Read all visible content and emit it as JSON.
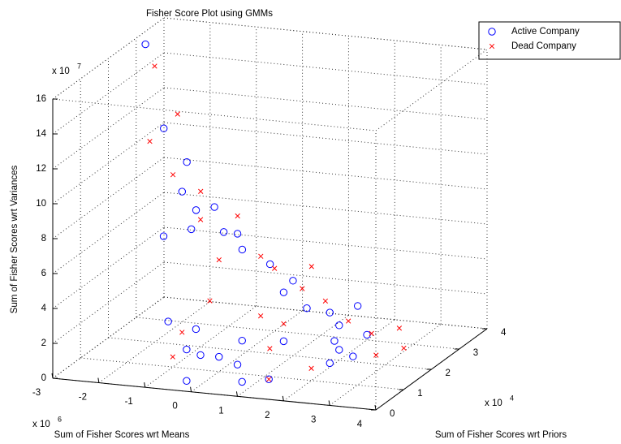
{
  "chart_data": {
    "type": "scatter3d",
    "title": "Fisher Score Plot using GMMs",
    "xlabel": "Sum of Fisher Scores wrt Means",
    "ylabel": "Sum of Fisher Scores wrt Priors",
    "zlabel": "Sum of Fisher Scores wrt Variances",
    "x_multiplier": {
      "base": "x 10",
      "exp": "6"
    },
    "y_multiplier": {
      "base": "x 10",
      "exp": "4"
    },
    "z_multiplier": {
      "base": "x 10",
      "exp": "7"
    },
    "xlim": [
      -3,
      4
    ],
    "xticks": [
      -3,
      -2,
      -1,
      0,
      1,
      2,
      3,
      4
    ],
    "ylim": [
      0,
      4
    ],
    "yticks": [
      0,
      1,
      2,
      3,
      4
    ],
    "zlim": [
      0,
      16
    ],
    "zticks": [
      0,
      2,
      4,
      6,
      8,
      10,
      12,
      14,
      16
    ],
    "grid": true,
    "legend_position": "upper right",
    "series": [
      {
        "name": "Active Company",
        "color": "#0000ff",
        "marker": "o",
        "x": [
          -2.8,
          -1.8,
          -1.3,
          -0.8,
          -0.6,
          -0.9,
          -1.1,
          -0.1,
          -0.5,
          0.4,
          -0.1,
          -0.1,
          1.0,
          1.4,
          1.3,
          2.4,
          2.0,
          1.8,
          2.5,
          2.0,
          1.4,
          0.5,
          0.3,
          -0.1,
          -0.5,
          -0.5,
          -0.1,
          0.8,
          1.2,
          2.4,
          -0.1,
          0.4,
          2.3,
          2.0
        ],
        "y": [
          3,
          2,
          2,
          1,
          1,
          0.5,
          2,
          1,
          2,
          1,
          2,
          3,
          2,
          1,
          2,
          1,
          2,
          3,
          1,
          2,
          1,
          1,
          0.5,
          0,
          0,
          1,
          0,
          0.5,
          0.8,
          1,
          0.5,
          1,
          2,
          3
        ],
        "z": [
          15.7,
          12.3,
          10.5,
          10.1,
          8.0,
          8.1,
          7.8,
          9.4,
          6.7,
          8.0,
          5.8,
          3.8,
          4.3,
          4.9,
          2.8,
          4.0,
          2.0,
          1.9,
          2.4,
          0.6,
          2.1,
          1.9,
          1.5,
          2.4,
          3.9,
          2.3,
          0.6,
          0.2,
          0.1,
          1.1,
          1.5,
          0.5,
          0.3,
          0.3
        ]
      },
      {
        "name": "Dead Company",
        "color": "#ff0000",
        "marker": "x",
        "x": [
          -2.6,
          -1.5,
          -1.5,
          -1.6,
          -1.0,
          -0.4,
          -0.2,
          0.0,
          -0.3,
          0.6,
          0.8,
          1.2,
          1.1,
          2.2,
          2.1,
          2.4,
          2.8,
          3.1,
          2.0,
          1.1,
          -0.5,
          -0.4,
          -0.2,
          0.3,
          1.4,
          1.2
        ],
        "y": [
          3,
          2,
          1,
          2,
          2,
          1,
          2,
          1,
          3,
          2,
          3,
          2,
          3,
          2,
          3,
          3.5,
          2,
          2.5,
          1,
          1,
          0.5,
          0,
          1,
          2,
          1,
          0.8
        ],
        "z": [
          14.5,
          13.2,
          12.8,
          9.7,
          8.9,
          8.6,
          7.7,
          6.4,
          4.2,
          4.9,
          3.9,
          3.9,
          2.0,
          2.3,
          0.4,
          0.2,
          0.5,
          0.4,
          0.7,
          1.6,
          2.7,
          1.9,
          4.0,
          2.1,
          3.1,
          0.1
        ]
      }
    ]
  }
}
